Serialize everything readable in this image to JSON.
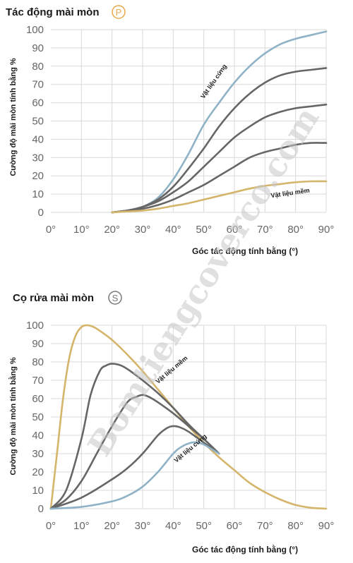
{
  "watermark": "Bomtiengcoverco.com",
  "chart_data": [
    {
      "type": "line",
      "title": "Tác động mài mòn",
      "badge": "P",
      "badge_color": "#E9A84A",
      "xlabel": "Góc tác động tính bằng (°)",
      "ylabel": "Cường độ mài mòn tính bằng %",
      "xlim": [
        0,
        90
      ],
      "ylim": [
        0,
        100
      ],
      "x_ticks": [
        "0°",
        "10°",
        "20°",
        "30°",
        "40°",
        "50°",
        "60°",
        "70°",
        "80°",
        "90°"
      ],
      "y_ticks": [
        "0",
        "10",
        "20",
        "30",
        "40",
        "50",
        "60",
        "70",
        "80",
        "90",
        "100"
      ],
      "grid": true,
      "annotations": [
        {
          "text": "Vật liệu cứng",
          "x": 50,
          "y": 62,
          "rotate": -55
        },
        {
          "text": "Vật liệu mềm",
          "x": 72,
          "y": 8,
          "rotate": -8
        }
      ],
      "series": [
        {
          "color": "#8FB2C6",
          "x": [
            20,
            25,
            30,
            35,
            40,
            45,
            50,
            55,
            60,
            65,
            70,
            75,
            80,
            85,
            90
          ],
          "y": [
            0,
            1,
            3,
            8,
            18,
            32,
            48,
            60,
            71,
            80,
            87,
            92,
            95,
            97,
            99
          ]
        },
        {
          "color": "#666666",
          "x": [
            20,
            25,
            30,
            35,
            40,
            45,
            50,
            55,
            60,
            65,
            70,
            75,
            80,
            85,
            90
          ],
          "y": [
            0,
            1,
            3,
            7,
            14,
            24,
            35,
            47,
            57,
            65,
            71,
            75,
            77,
            78,
            79
          ]
        },
        {
          "color": "#666666",
          "x": [
            20,
            25,
            30,
            35,
            40,
            45,
            50,
            55,
            60,
            65,
            70,
            75,
            80,
            85,
            90
          ],
          "y": [
            0,
            1,
            3,
            6,
            11,
            17,
            25,
            33,
            41,
            47,
            52,
            55,
            57,
            58,
            59
          ]
        },
        {
          "color": "#666666",
          "x": [
            20,
            25,
            30,
            35,
            40,
            45,
            50,
            55,
            60,
            65,
            70,
            75,
            80,
            85,
            90
          ],
          "y": [
            0,
            1,
            2,
            4,
            7,
            11,
            15,
            20,
            25,
            30,
            33,
            35,
            37,
            38,
            38
          ]
        },
        {
          "color": "#D4B56A",
          "x": [
            20,
            25,
            30,
            35,
            40,
            45,
            50,
            55,
            60,
            65,
            70,
            75,
            80,
            85,
            90
          ],
          "y": [
            0,
            0.5,
            1,
            2,
            3.5,
            5,
            7,
            9,
            11,
            13,
            14.5,
            15.5,
            16.5,
            17,
            17
          ]
        }
      ]
    },
    {
      "type": "line",
      "title": "Cọ rửa mài mòn",
      "badge": "S",
      "badge_color": "#777777",
      "xlabel": "Góc tác động tính bằng (°)",
      "ylabel": "Cường độ mài mòn tính bằng %",
      "xlim": [
        0,
        90
      ],
      "ylim": [
        0,
        100
      ],
      "x_ticks": [
        "0°",
        "10°",
        "20°",
        "30°",
        "40°",
        "50°",
        "60°",
        "70°",
        "80°",
        "90°"
      ],
      "y_ticks": [
        "0",
        "10",
        "20",
        "30",
        "40",
        "50",
        "60",
        "70",
        "80",
        "90",
        "100"
      ],
      "grid": true,
      "annotations": [
        {
          "text": "Vật liệu mềm",
          "x": 35,
          "y": 68,
          "rotate": -40
        },
        {
          "text": "Vật liệu cứng",
          "x": 41,
          "y": 25,
          "rotate": -40
        }
      ],
      "series": [
        {
          "color": "#D4B56A",
          "x": [
            0,
            2,
            4,
            6,
            8,
            10,
            12,
            14,
            16,
            20,
            25,
            30,
            35,
            40,
            45,
            50,
            55,
            60,
            65,
            70,
            75,
            80,
            85,
            90
          ],
          "y": [
            0,
            30,
            60,
            82,
            94,
            99,
            100,
            99,
            97,
            92,
            84,
            75,
            65,
            55,
            45,
            36,
            28,
            21,
            14,
            9,
            5,
            2,
            0.5,
            0
          ]
        },
        {
          "color": "#666666",
          "x": [
            0,
            5,
            10,
            13,
            16,
            18,
            20,
            23,
            26,
            30,
            35,
            40,
            45,
            50,
            55
          ],
          "y": [
            0,
            10,
            38,
            62,
            75,
            78,
            79,
            78,
            75,
            70,
            63,
            55,
            46,
            38,
            30
          ]
        },
        {
          "color": "#666666",
          "x": [
            0,
            5,
            10,
            15,
            20,
            25,
            28,
            30,
            32,
            35,
            40,
            45,
            50,
            55
          ],
          "y": [
            0,
            5,
            15,
            30,
            45,
            58,
            61,
            62,
            61,
            58,
            52,
            45,
            38,
            30
          ]
        },
        {
          "color": "#666666",
          "x": [
            0,
            10,
            20,
            25,
            30,
            35,
            38,
            40,
            42,
            45,
            50,
            55
          ],
          "y": [
            0,
            6,
            16,
            22,
            30,
            40,
            44,
            45,
            44.5,
            42,
            36,
            30
          ]
        },
        {
          "color": "#8FB2C6",
          "x": [
            0,
            10,
            20,
            25,
            30,
            35,
            40,
            43,
            46,
            48,
            50,
            53,
            55
          ],
          "y": [
            0,
            1,
            4,
            7,
            12,
            20,
            30,
            34,
            36,
            36,
            35,
            32,
            30
          ]
        }
      ]
    }
  ]
}
